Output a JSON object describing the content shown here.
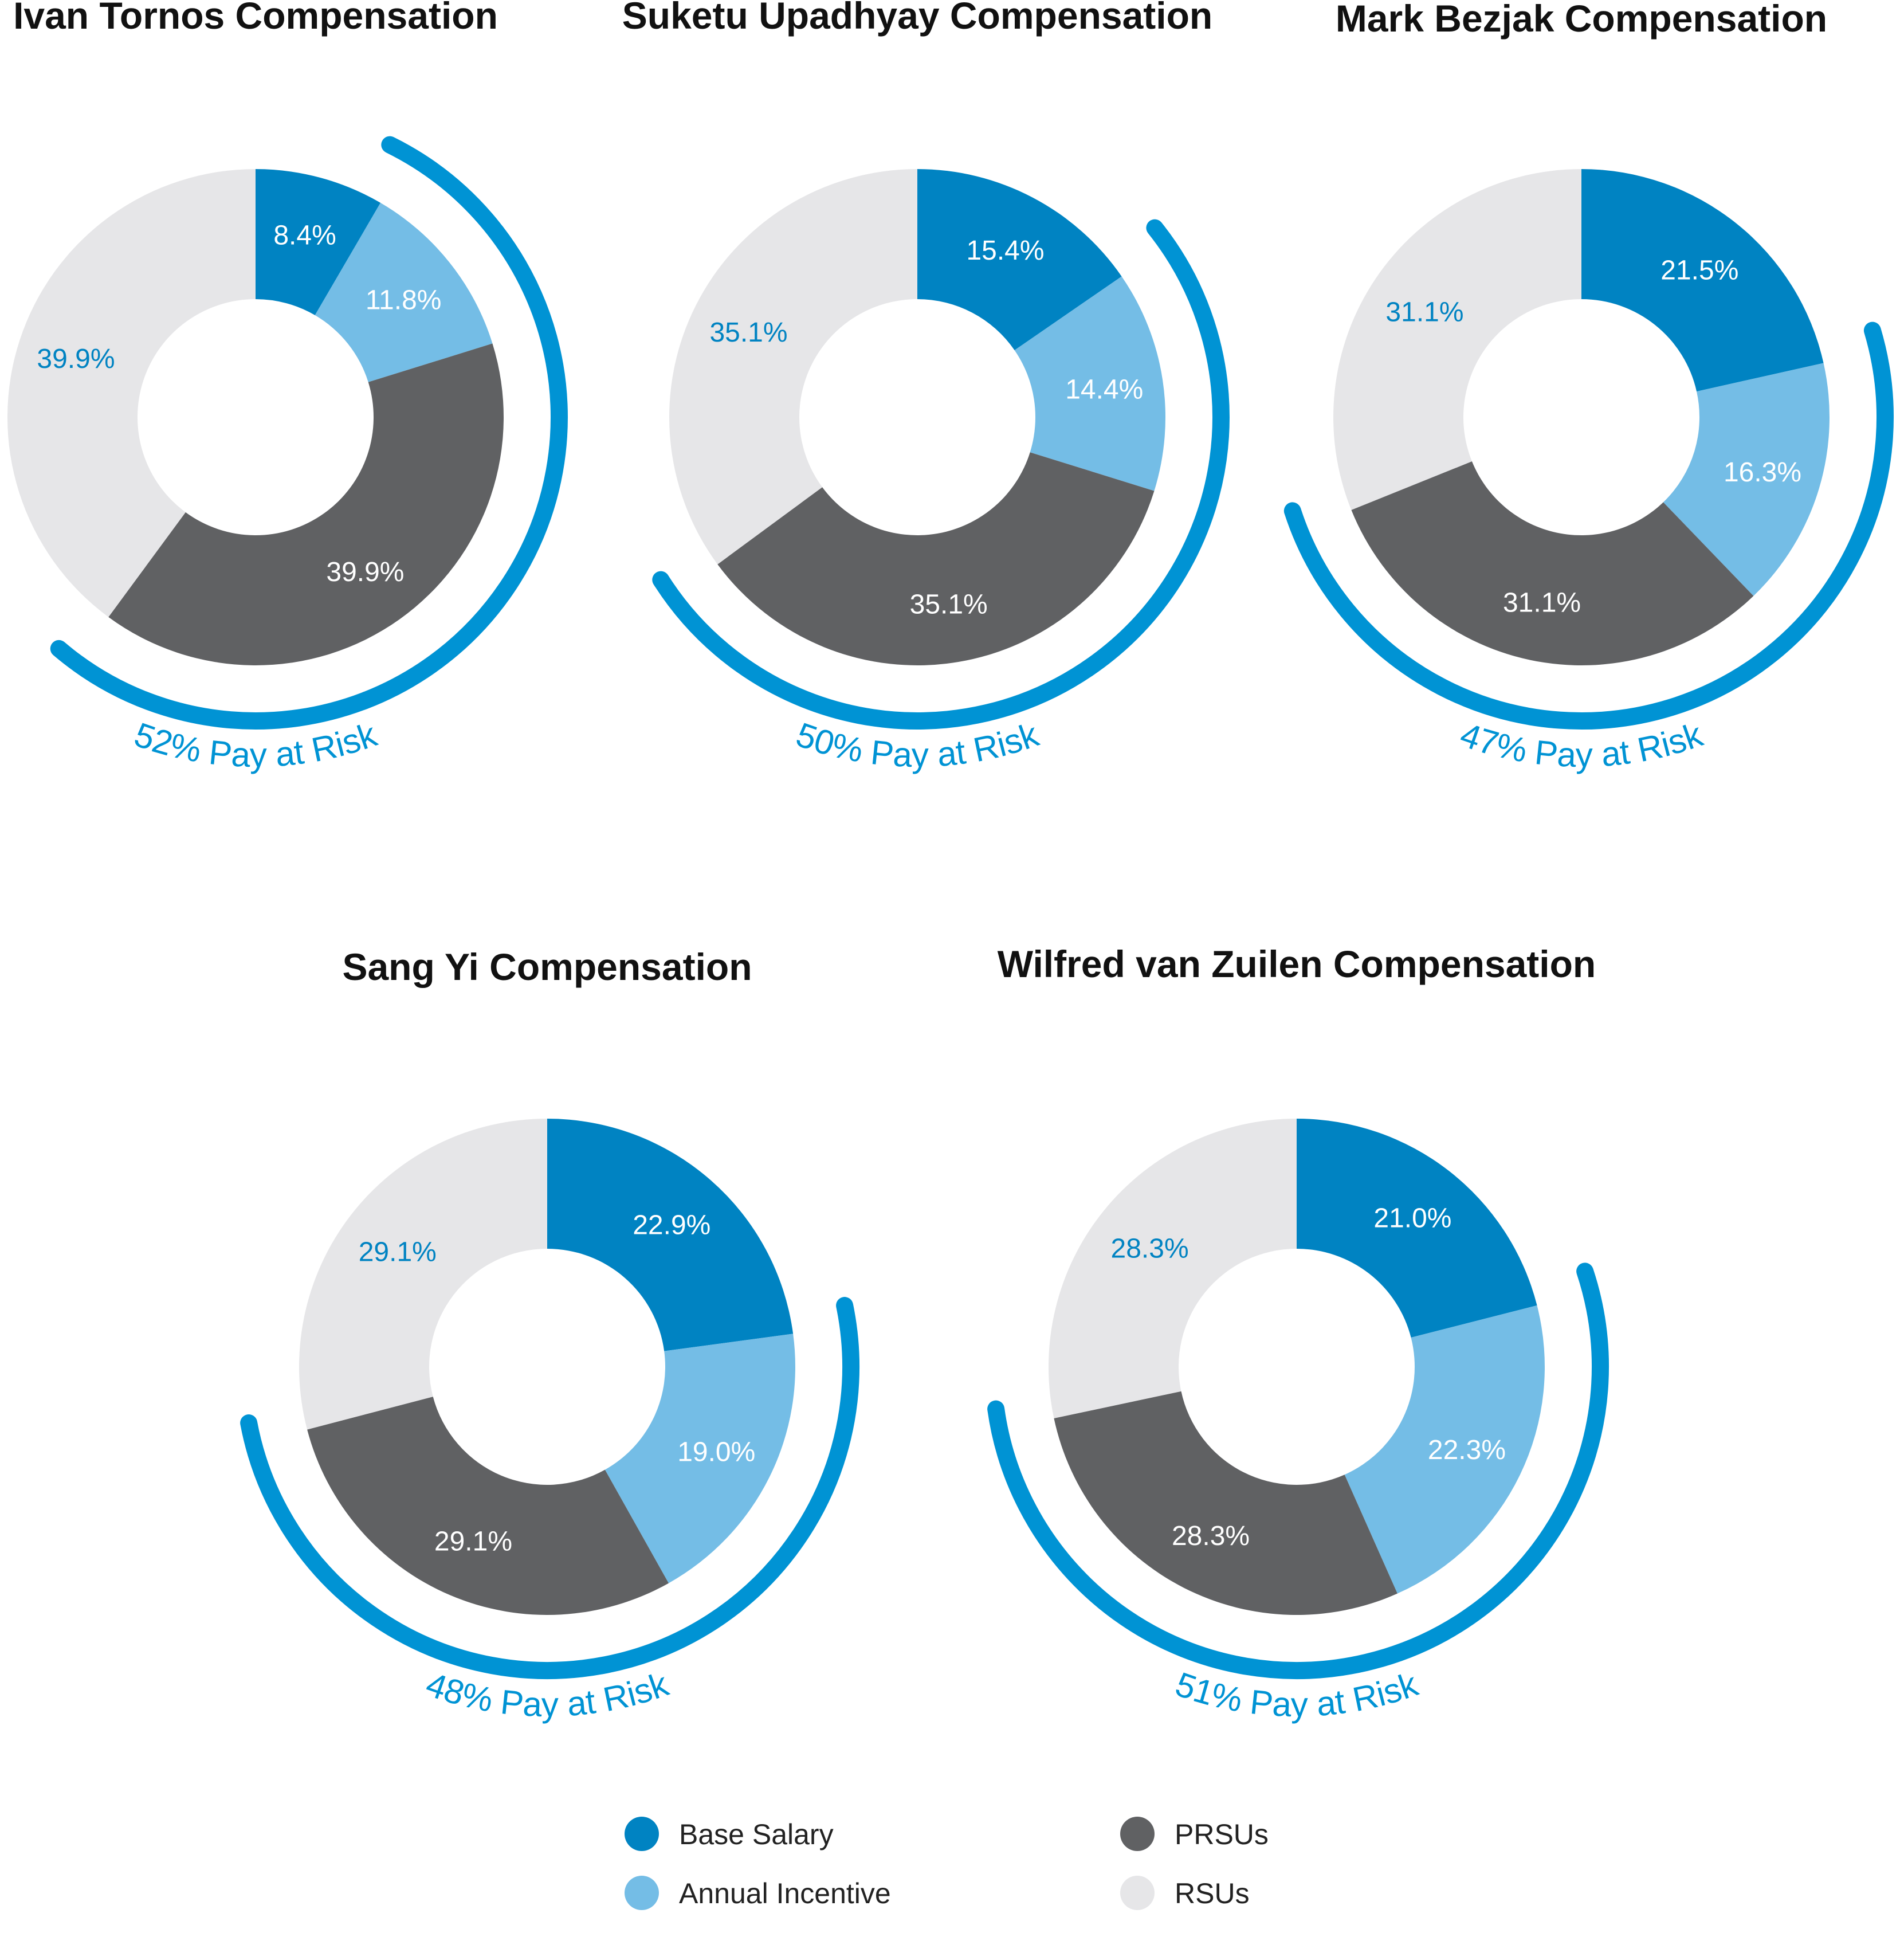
{
  "colors": {
    "base": "#0083c2",
    "annual": "#74bde6",
    "prsu": "#606163",
    "rsu": "#e6e6e8",
    "arc": "#0093d4",
    "title": "#111111"
  },
  "legend": [
    {
      "key": "base",
      "label": "Base Salary"
    },
    {
      "key": "annual",
      "label": "Annual Incentive"
    },
    {
      "key": "prsu",
      "label": "PRSUs"
    },
    {
      "key": "rsu",
      "label": "RSUs"
    }
  ],
  "chart_data": [
    {
      "type": "donut",
      "title": "Ivan Tornos Compensation",
      "categories": [
        "Base Salary",
        "Annual Incentive",
        "PRSUs",
        "RSUs"
      ],
      "values": [
        8.4,
        11.8,
        39.9,
        39.9
      ],
      "labels": [
        "8.4%",
        "11.8%",
        "39.9%",
        "39.9%"
      ],
      "pay_at_risk": "52% Pay at Risk"
    },
    {
      "type": "donut",
      "title": "Suketu Upadhyay Compensation",
      "categories": [
        "Base Salary",
        "Annual Incentive",
        "PRSUs",
        "RSUs"
      ],
      "values": [
        15.4,
        14.4,
        35.1,
        35.1
      ],
      "labels": [
        "15.4%",
        "14.4%",
        "35.1%",
        "35.1%"
      ],
      "pay_at_risk": "50% Pay at Risk"
    },
    {
      "type": "donut",
      "title": "Mark Bezjak Compensation",
      "categories": [
        "Base Salary",
        "Annual Incentive",
        "PRSUs",
        "RSUs"
      ],
      "values": [
        21.5,
        16.3,
        31.1,
        31.1
      ],
      "labels": [
        "21.5%",
        "16.3%",
        "31.1%",
        "31.1%"
      ],
      "pay_at_risk": "47% Pay at Risk"
    },
    {
      "type": "donut",
      "title": "Sang Yi Compensation",
      "categories": [
        "Base Salary",
        "Annual Incentive",
        "PRSUs",
        "RSUs"
      ],
      "values": [
        22.9,
        19.0,
        29.1,
        29.1
      ],
      "labels": [
        "22.9%",
        "19.0%",
        "29.1%",
        "29.1%"
      ],
      "pay_at_risk": "48% Pay at Risk"
    },
    {
      "type": "donut",
      "title": "Wilfred van Zuilen Compensation",
      "categories": [
        "Base Salary",
        "Annual Incentive",
        "PRSUs",
        "RSUs"
      ],
      "values": [
        21.0,
        22.3,
        28.3,
        28.3
      ],
      "labels": [
        "21.0%",
        "22.3%",
        "28.3%",
        "28.3%"
      ],
      "pay_at_risk": "51% Pay at Risk"
    }
  ]
}
